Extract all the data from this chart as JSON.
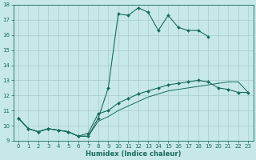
{
  "xlabel": "Humidex (Indice chaleur)",
  "xlim": [
    -0.5,
    23.5
  ],
  "ylim": [
    9,
    18
  ],
  "yticks": [
    9,
    10,
    11,
    12,
    13,
    14,
    15,
    16,
    17,
    18
  ],
  "xticks": [
    0,
    1,
    2,
    3,
    4,
    5,
    6,
    7,
    8,
    9,
    10,
    11,
    12,
    13,
    14,
    15,
    16,
    17,
    18,
    19,
    20,
    21,
    22,
    23
  ],
  "bg_color": "#c6e8e8",
  "grid_color": "#a8cccc",
  "line_color": "#1a6b5a",
  "series": [
    {
      "x": [
        0,
        1,
        2,
        3,
        4,
        5,
        6,
        7,
        8,
        9,
        10,
        11,
        12,
        13,
        14,
        15,
        16,
        17,
        18,
        19
      ],
      "y": [
        10.5,
        9.8,
        9.6,
        9.8,
        9.7,
        9.6,
        9.3,
        9.3,
        10.5,
        12.5,
        17.4,
        17.3,
        17.8,
        17.5,
        16.3,
        17.3,
        16.5,
        16.3,
        16.3,
        15.9
      ],
      "marker": "D",
      "markersize": 2.0,
      "linewidth": 0.8,
      "linestyle": "-"
    },
    {
      "x": [
        0,
        1,
        2,
        3,
        4,
        5,
        6,
        7,
        8,
        9,
        10,
        11,
        12,
        13,
        14,
        15,
        16,
        17,
        18,
        19,
        20,
        21,
        22,
        23
      ],
      "y": [
        10.5,
        9.8,
        9.6,
        9.8,
        9.7,
        9.6,
        9.3,
        9.5,
        10.8,
        11.0,
        11.5,
        11.8,
        12.1,
        12.3,
        12.5,
        12.7,
        12.8,
        12.9,
        13.0,
        12.9,
        12.5,
        12.4,
        12.2,
        12.2
      ],
      "marker": "D",
      "markersize": 2.0,
      "linewidth": 0.8,
      "linestyle": "-"
    },
    {
      "x": [
        0,
        1,
        2,
        3,
        4,
        5,
        6,
        7,
        8,
        9,
        10,
        11,
        12,
        13,
        14,
        15,
        16,
        17,
        18,
        19,
        20,
        21,
        22,
        23
      ],
      "y": [
        10.5,
        9.8,
        9.6,
        9.8,
        9.7,
        9.6,
        9.3,
        9.3,
        10.3,
        10.6,
        11.0,
        11.3,
        11.6,
        11.9,
        12.1,
        12.3,
        12.4,
        12.5,
        12.6,
        12.7,
        12.8,
        12.9,
        12.9,
        12.2
      ],
      "marker": null,
      "markersize": 0,
      "linewidth": 0.7,
      "linestyle": "-"
    }
  ]
}
